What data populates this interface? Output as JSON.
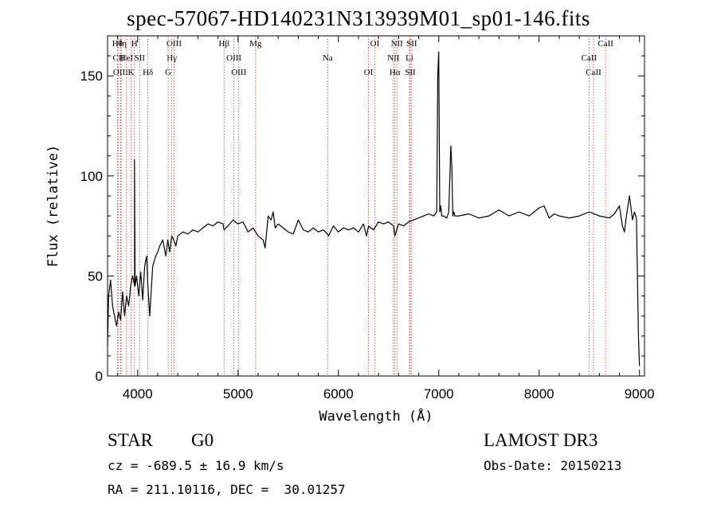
{
  "chart_data": {
    "type": "line",
    "title": "spec-57067-HD140231N313939M01_sp01-146.fits",
    "xlabel": "Wavelength (Å)",
    "ylabel": "Flux (relative)",
    "xlim": [
      3700,
      9050
    ],
    "ylim": [
      0,
      170
    ],
    "xticks": [
      4000,
      5000,
      6000,
      7000,
      8000,
      9000
    ],
    "yticks": [
      0,
      50,
      100,
      150
    ],
    "grid": false,
    "series": [
      {
        "x": [
          3700,
          3710,
          3730,
          3750,
          3770,
          3790,
          3810,
          3830,
          3850,
          3870,
          3890,
          3910,
          3930,
          3950,
          3970,
          3968,
          3975,
          3990,
          4010,
          4030,
          4050,
          4070,
          4090,
          4102,
          4120,
          4150,
          4180,
          4200,
          4220,
          4250,
          4280,
          4300,
          4320,
          4340,
          4360,
          4380,
          4400,
          4450,
          4500,
          4550,
          4600,
          4650,
          4700,
          4750,
          4800,
          4850,
          4861,
          4900,
          4950,
          5000,
          5050,
          5100,
          5150,
          5200,
          5250,
          5270,
          5300,
          5330,
          5350,
          5370,
          5400,
          5450,
          5500,
          5550,
          5580,
          5600,
          5650,
          5700,
          5750,
          5800,
          5850,
          5890,
          5900,
          5950,
          6000,
          6050,
          6100,
          6150,
          6200,
          6250,
          6280,
          6300,
          6350,
          6400,
          6450,
          6500,
          6550,
          6563,
          6600,
          6650,
          6700,
          6750,
          6800,
          6850,
          6900,
          6950,
          6980,
          6990,
          7000,
          7010,
          7020,
          7030,
          7050,
          7080,
          7100,
          7120,
          7130,
          7140,
          7150,
          7160,
          7200,
          7300,
          7400,
          7500,
          7600,
          7700,
          7800,
          7900,
          8000,
          8050,
          8100,
          8150,
          8200,
          8300,
          8400,
          8500,
          8600,
          8700,
          8750,
          8800,
          8830,
          8850,
          8870,
          8900,
          8930,
          8950,
          8970,
          8990,
          9000
        ],
        "values": [
          15,
          40,
          48,
          35,
          30,
          25,
          32,
          28,
          42,
          30,
          40,
          35,
          45,
          50,
          45,
          108,
          45,
          50,
          40,
          52,
          38,
          55,
          60,
          45,
          30,
          55,
          60,
          62,
          65,
          68,
          60,
          68,
          62,
          70,
          68,
          65,
          70,
          72,
          71,
          73,
          72,
          74,
          76,
          75,
          77,
          76,
          73,
          75,
          78,
          76,
          77,
          72,
          74,
          70,
          68,
          64,
          80,
          78,
          82,
          74,
          76,
          74,
          72,
          71,
          75,
          78,
          73,
          72,
          74,
          72,
          73,
          71,
          70,
          75,
          72,
          74,
          73,
          74,
          72,
          76,
          70,
          75,
          73,
          77,
          76,
          77,
          75,
          70,
          76,
          75,
          77,
          78,
          79,
          80,
          81,
          80,
          82,
          150,
          162,
          82,
          85,
          80,
          80,
          79,
          82,
          115,
          105,
          80,
          82,
          80,
          80,
          81,
          79,
          80,
          83,
          80,
          82,
          80,
          84,
          85,
          79,
          81,
          80,
          79,
          80,
          82,
          80,
          79,
          81,
          85,
          75,
          72,
          80,
          90,
          78,
          82,
          79,
          20,
          5
        ]
      }
    ],
    "lines": [
      {
        "name": "Hθ",
        "x": 3798
      },
      {
        "name": "CII",
        "x": 3810
      },
      {
        "name": "OIII",
        "x": 3830
      },
      {
        "name": "Hη",
        "x": 3836
      },
      {
        "name": "HeI",
        "x": 3889
      },
      {
        "name": "K",
        "x": 3934
      },
      {
        "name": "H",
        "x": 3968
      },
      {
        "name": "SII",
        "x": 4020
      },
      {
        "name": "Hδ",
        "x": 4102
      },
      {
        "name": "OIII",
        "x": 4363
      },
      {
        "name": "Hγ",
        "x": 4340
      },
      {
        "name": "G",
        "x": 4304
      },
      {
        "name": "Hβ",
        "x": 4861
      },
      {
        "name": "OIII",
        "x": 4959
      },
      {
        "name": "OIII",
        "x": 5007
      },
      {
        "name": "Mg",
        "x": 5175
      },
      {
        "name": "Na",
        "x": 5893
      },
      {
        "name": "OI",
        "x": 6300
      },
      {
        "name": "OI",
        "x": 6363
      },
      {
        "name": "NII",
        "x": 6548
      },
      {
        "name": "Hα",
        "x": 6563
      },
      {
        "name": "NII",
        "x": 6583
      },
      {
        "name": "Li",
        "x": 6708
      },
      {
        "name": "SII",
        "x": 6716
      },
      {
        "name": "SII",
        "x": 6731
      },
      {
        "name": "CaII",
        "x": 8498
      },
      {
        "name": "CaII",
        "x": 8542
      },
      {
        "name": "CaII",
        "x": 8662
      }
    ]
  },
  "info": {
    "class": "STAR",
    "subclass": "G0",
    "survey": "LAMOST DR3",
    "cz": "cz = -689.5 ± 16.9 km/s",
    "obsdate": "Obs-Date: 20150213",
    "radec": "RA = 211.10116, DEC =  30.01257"
  }
}
